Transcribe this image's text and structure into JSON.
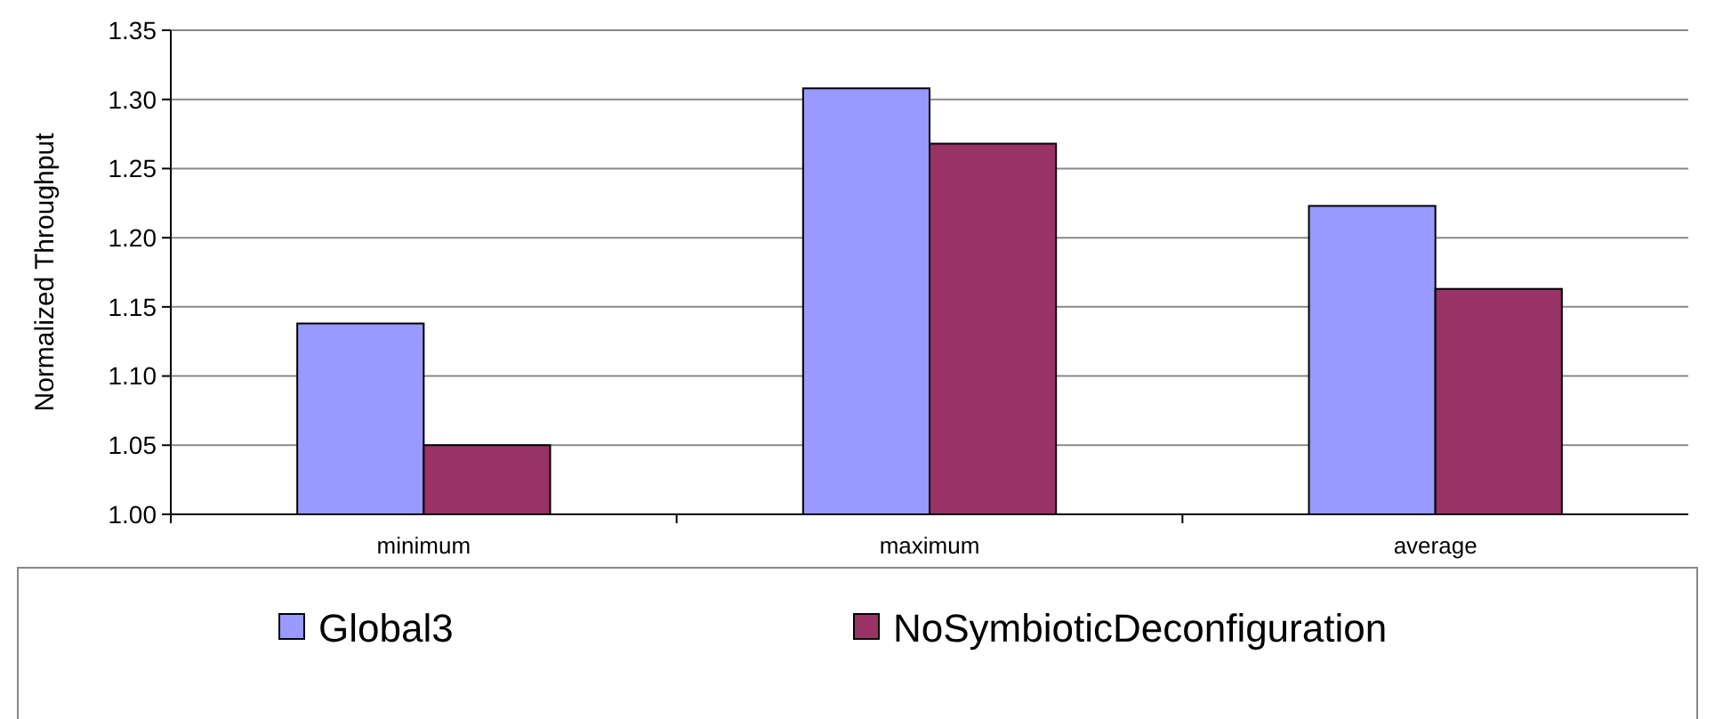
{
  "chart_data": {
    "type": "bar",
    "ylabel": "Normalized Throughput",
    "categories": [
      "minimum",
      "maximum",
      "average"
    ],
    "series": [
      {
        "name": "Global3",
        "color": "#9999ff",
        "values": [
          1.138,
          1.308,
          1.223
        ]
      },
      {
        "name": "NoSymbioticDeconfiguration",
        "color": "#993366",
        "values": [
          1.05,
          1.268,
          1.163
        ]
      }
    ],
    "ylim": [
      1,
      1.35
    ],
    "yticks": [
      {
        "value": 1,
        "label": "1.00"
      },
      1.05,
      {
        "value": 1.1,
        "label": "1.10"
      },
      1.15,
      {
        "value": 1.2,
        "label": "1.20"
      },
      1.25,
      {
        "value": 1.3,
        "label": "1.30"
      },
      1.35
    ],
    "grid": "y",
    "legend": "bottom"
  }
}
